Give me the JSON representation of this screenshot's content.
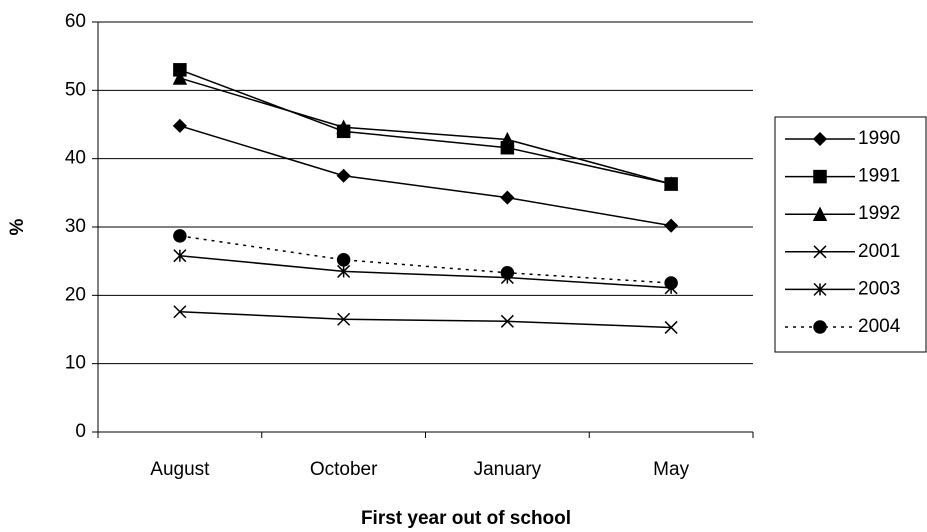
{
  "chart_data": {
    "type": "line",
    "x_label": "First year out of school",
    "y_label": "%",
    "categories": [
      "August",
      "October",
      "January",
      "May"
    ],
    "ylim": [
      0,
      60
    ],
    "yticks": [
      0,
      10,
      20,
      30,
      40,
      50,
      60
    ],
    "grid": true,
    "legend": "right",
    "series": [
      {
        "name": "1990",
        "color": "#000000",
        "marker": "diamond",
        "dashed": false,
        "values": [
          44.8,
          37.5,
          34.3,
          30.2
        ]
      },
      {
        "name": "1991",
        "color": "#000000",
        "marker": "square",
        "dashed": false,
        "values": [
          53,
          44,
          41.6,
          36.3
        ]
      },
      {
        "name": "1992",
        "color": "#000000",
        "marker": "triangle",
        "dashed": false,
        "values": [
          51.8,
          44.6,
          42.8,
          36.3
        ]
      },
      {
        "name": "2001",
        "color": "#000000",
        "marker": "x",
        "dashed": false,
        "values": [
          17.6,
          16.5,
          16.2,
          15.3
        ]
      },
      {
        "name": "2003",
        "color": "#000000",
        "marker": "star",
        "dashed": false,
        "values": [
          25.8,
          23.5,
          22.6,
          21.1
        ]
      },
      {
        "name": "2004",
        "color": "#000000",
        "marker": "circle",
        "dashed": true,
        "values": [
          28.7,
          25.2,
          23.3,
          21.8
        ]
      }
    ]
  }
}
